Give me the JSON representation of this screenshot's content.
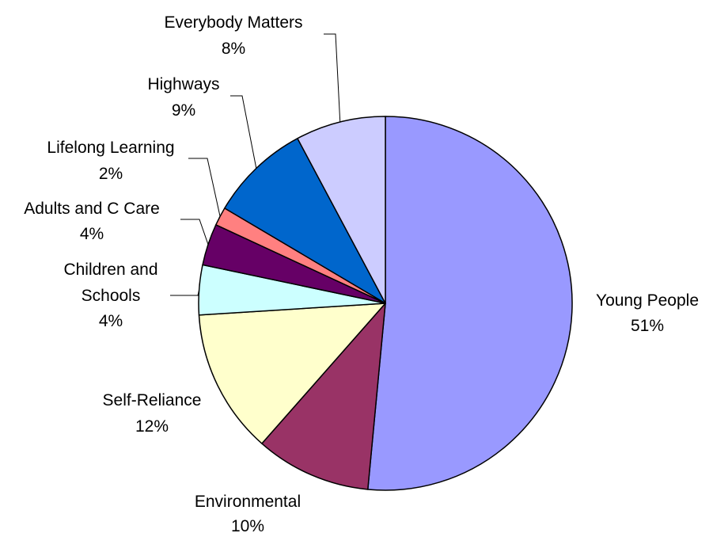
{
  "chart_data": {
    "type": "pie",
    "title": "",
    "start": "12 o'clock, clockwise",
    "slices": [
      {
        "name": "Young People",
        "label_lines": [
          "Young People"
        ],
        "pct_label": "51%",
        "value": 51.5,
        "color": "#9999ff"
      },
      {
        "name": "Environmental",
        "label_lines": [
          "Environmental"
        ],
        "pct_label": "10%",
        "value": 10.0,
        "color": "#993366"
      },
      {
        "name": "Self-Reliance",
        "label_lines": [
          "Self-Reliance"
        ],
        "pct_label": "12%",
        "value": 12.5,
        "color": "#ffffcc"
      },
      {
        "name": "Children and Schools",
        "label_lines": [
          "Children and",
          "Schools"
        ],
        "pct_label": "4%",
        "value": 4.3,
        "color": "#ccffff"
      },
      {
        "name": "Adults and C Care",
        "label_lines": [
          "Adults and C Care"
        ],
        "pct_label": "4%",
        "value": 3.6,
        "color": "#660066"
      },
      {
        "name": "Lifelong Learning",
        "label_lines": [
          "Lifelong Learning"
        ],
        "pct_label": "2%",
        "value": 1.6,
        "color": "#ff8080"
      },
      {
        "name": "Highways",
        "label_lines": [
          "Highways"
        ],
        "pct_label": "9%",
        "value": 8.7,
        "color": "#0066cc"
      },
      {
        "name": "Everybody Matters",
        "label_lines": [
          "Everybody Matters"
        ],
        "pct_label": "8%",
        "value": 7.8,
        "color": "#ccccff"
      }
    ]
  }
}
